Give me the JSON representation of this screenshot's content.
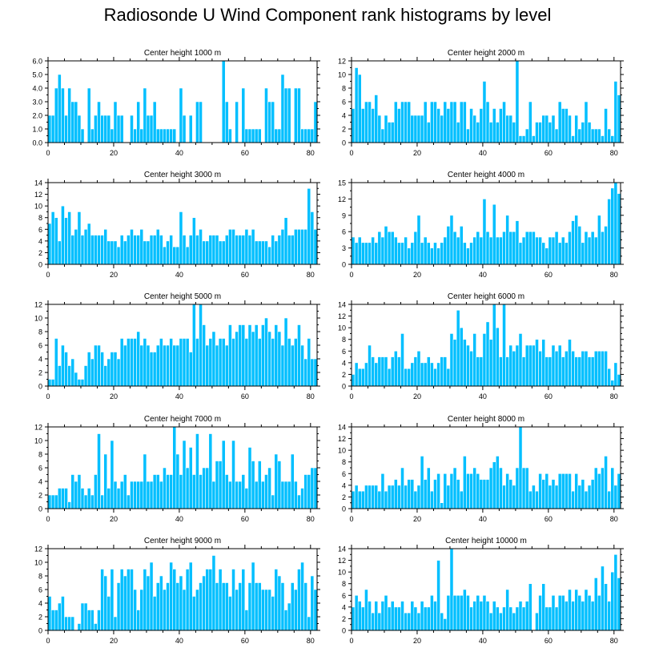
{
  "title": "Radiosonde U Wind Component rank histograms by level",
  "bar_color": "#00bfff",
  "bar_edge_color": "#ffffff",
  "chart_data": [
    {
      "type": "bar",
      "title": "Center height 1000 m",
      "xlim": [
        0,
        82
      ],
      "xticks": [
        0,
        20,
        40,
        60,
        80
      ],
      "ylim": [
        0,
        6
      ],
      "yticks": [
        0,
        1,
        2,
        3,
        4,
        5,
        6
      ],
      "ytick_labels": [
        "0.0",
        "1.0",
        "2.0",
        "3.0",
        "4.0",
        "5.0",
        "6.0"
      ],
      "values": [
        2,
        2,
        4,
        5,
        4,
        2,
        4,
        3,
        3,
        2,
        1,
        0,
        4,
        1,
        2,
        3,
        2,
        2,
        2,
        1,
        3,
        2,
        2,
        0,
        0,
        2,
        1,
        3,
        1,
        4,
        2,
        2,
        3,
        1,
        1,
        1,
        1,
        1,
        1,
        0,
        4,
        2,
        0,
        2,
        0,
        3,
        3,
        0,
        0,
        0,
        0,
        0,
        0,
        6,
        3,
        1,
        0,
        3,
        0,
        4,
        1,
        1,
        1,
        1,
        1,
        0,
        4,
        3,
        3,
        1,
        1,
        5,
        4,
        4,
        0,
        4,
        4,
        1,
        1,
        1,
        1,
        3
      ]
    },
    {
      "type": "bar",
      "title": "Center height 2000 m",
      "xlim": [
        0,
        82
      ],
      "xticks": [
        0,
        20,
        40,
        60,
        80
      ],
      "ylim": [
        0,
        12
      ],
      "yticks": [
        0,
        2,
        4,
        6,
        8,
        10,
        12
      ],
      "ytick_labels": [
        "0",
        "2",
        "4",
        "6",
        "8",
        "10",
        "12"
      ],
      "values": [
        5,
        11,
        10,
        5,
        6,
        6,
        5,
        7,
        4,
        2,
        4,
        3,
        3,
        6,
        5,
        6,
        6,
        6,
        4,
        4,
        4,
        4,
        6,
        3,
        6,
        6,
        5,
        4,
        6,
        5,
        6,
        6,
        3,
        6,
        6,
        2,
        5,
        4,
        3,
        5,
        9,
        6,
        3,
        5,
        3,
        5,
        6,
        4,
        4,
        3,
        12,
        1,
        1,
        2,
        6,
        1,
        3,
        3,
        4,
        4,
        3,
        4,
        2,
        6,
        5,
        5,
        4,
        1,
        4,
        2,
        3,
        6,
        3,
        2,
        2,
        2,
        1,
        5,
        2,
        1,
        9,
        7
      ]
    },
    {
      "type": "bar",
      "title": "Center height 3000 m",
      "xlim": [
        0,
        82
      ],
      "xticks": [
        0,
        20,
        40,
        60,
        80
      ],
      "ylim": [
        0,
        14
      ],
      "yticks": [
        0,
        2,
        4,
        6,
        8,
        10,
        12,
        14
      ],
      "ytick_labels": [
        "0",
        "2",
        "4",
        "6",
        "8",
        "10",
        "12",
        "14"
      ],
      "values": [
        7,
        9,
        8,
        4,
        10,
        8,
        9,
        5,
        6,
        9,
        5,
        6,
        7,
        5,
        5,
        5,
        5,
        6,
        4,
        4,
        4,
        3,
        5,
        4,
        5,
        6,
        5,
        5,
        6,
        4,
        4,
        5,
        5,
        6,
        5,
        3,
        4,
        5,
        3,
        3,
        9,
        5,
        3,
        5,
        8,
        5,
        6,
        4,
        4,
        5,
        5,
        5,
        4,
        4,
        5,
        6,
        6,
        5,
        5,
        5,
        6,
        5,
        6,
        4,
        4,
        4,
        4,
        3,
        5,
        4,
        5,
        6,
        8,
        5,
        5,
        6,
        6,
        6,
        6,
        13,
        9,
        6
      ]
    },
    {
      "type": "bar",
      "title": "Center height 4000 m",
      "xlim": [
        0,
        82
      ],
      "xticks": [
        0,
        20,
        40,
        60,
        80
      ],
      "ylim": [
        0,
        15
      ],
      "yticks": [
        0,
        3,
        6,
        9,
        12,
        15
      ],
      "ytick_labels": [
        "0",
        "3",
        "6",
        "9",
        "12",
        "15"
      ],
      "values": [
        5,
        4,
        5,
        4,
        4,
        4,
        5,
        4,
        6,
        5,
        7,
        6,
        6,
        5,
        4,
        4,
        5,
        3,
        4,
        6,
        9,
        4,
        5,
        4,
        3,
        4,
        3,
        4,
        5,
        7,
        9,
        6,
        5,
        7,
        4,
        3,
        4,
        5,
        6,
        5,
        12,
        6,
        5,
        11,
        5,
        5,
        6,
        9,
        6,
        6,
        8,
        4,
        5,
        6,
        6,
        6,
        5,
        5,
        4,
        3,
        5,
        5,
        6,
        4,
        5,
        4,
        6,
        8,
        9,
        7,
        4,
        6,
        5,
        6,
        5,
        9,
        6,
        7,
        12,
        14,
        15,
        13
      ]
    },
    {
      "type": "bar",
      "title": "Center height 5000 m",
      "xlim": [
        0,
        82
      ],
      "xticks": [
        0,
        20,
        40,
        60,
        80
      ],
      "ylim": [
        0,
        12
      ],
      "yticks": [
        0,
        2,
        4,
        6,
        8,
        10,
        12
      ],
      "ytick_labels": [
        "0",
        "2",
        "4",
        "6",
        "8",
        "10",
        "12"
      ],
      "values": [
        1,
        1,
        7,
        3,
        6,
        5,
        3,
        4,
        2,
        1,
        1,
        3,
        5,
        4,
        6,
        6,
        5,
        3,
        4,
        5,
        5,
        4,
        7,
        6,
        7,
        7,
        7,
        8,
        6,
        7,
        6,
        5,
        5,
        6,
        7,
        6,
        6,
        7,
        6,
        6,
        7,
        7,
        7,
        5,
        12,
        7,
        12,
        9,
        6,
        7,
        8,
        6,
        7,
        7,
        6,
        9,
        7,
        8,
        9,
        9,
        7,
        9,
        8,
        9,
        7,
        9,
        10,
        8,
        7,
        9,
        8,
        6,
        10,
        7,
        6,
        7,
        9,
        6,
        4,
        7,
        4,
        4
      ]
    },
    {
      "type": "bar",
      "title": "Center height 6000 m",
      "xlim": [
        0,
        82
      ],
      "xticks": [
        0,
        20,
        40,
        60,
        80
      ],
      "ylim": [
        0,
        14
      ],
      "yticks": [
        0,
        2,
        4,
        6,
        8,
        10,
        12,
        14
      ],
      "ytick_labels": [
        "0",
        "2",
        "4",
        "6",
        "8",
        "10",
        "12",
        "14"
      ],
      "values": [
        2,
        4,
        3,
        3,
        4,
        7,
        5,
        4,
        5,
        5,
        5,
        3,
        5,
        6,
        5,
        9,
        3,
        3,
        4,
        5,
        6,
        4,
        4,
        5,
        4,
        3,
        4,
        5,
        5,
        3,
        9,
        8,
        13,
        10,
        8,
        7,
        6,
        9,
        5,
        5,
        9,
        11,
        8,
        14,
        10,
        5,
        14,
        5,
        7,
        6,
        7,
        9,
        5,
        7,
        7,
        7,
        8,
        6,
        8,
        5,
        5,
        7,
        6,
        7,
        5,
        6,
        8,
        6,
        5,
        5,
        6,
        6,
        5,
        5,
        6,
        6,
        6,
        6,
        3,
        1,
        4,
        2
      ]
    },
    {
      "type": "bar",
      "title": "Center height 7000 m",
      "xlim": [
        0,
        82
      ],
      "xticks": [
        0,
        20,
        40,
        60,
        80
      ],
      "ylim": [
        0,
        12
      ],
      "yticks": [
        0,
        2,
        4,
        6,
        8,
        10,
        12
      ],
      "ytick_labels": [
        "0",
        "2",
        "4",
        "6",
        "8",
        "10",
        "12"
      ],
      "values": [
        2,
        2,
        2,
        3,
        3,
        3,
        1,
        5,
        4,
        5,
        3,
        2,
        3,
        2,
        5,
        11,
        2,
        8,
        3,
        10,
        4,
        3,
        4,
        5,
        2,
        4,
        4,
        4,
        4,
        8,
        4,
        4,
        5,
        5,
        4,
        6,
        5,
        5,
        12,
        8,
        5,
        10,
        6,
        9,
        5,
        11,
        5,
        6,
        6,
        11,
        4,
        7,
        7,
        10,
        5,
        4,
        10,
        4,
        4,
        5,
        3,
        9,
        7,
        4,
        7,
        4,
        5,
        6,
        2,
        8,
        7,
        4,
        4,
        4,
        8,
        4,
        2,
        3,
        5,
        5,
        6,
        6
      ]
    },
    {
      "type": "bar",
      "title": "Center height 8000 m",
      "xlim": [
        0,
        82
      ],
      "xticks": [
        0,
        20,
        40,
        60,
        80
      ],
      "ylim": [
        0,
        14
      ],
      "yticks": [
        0,
        2,
        4,
        6,
        8,
        10,
        12,
        14
      ],
      "ytick_labels": [
        "0",
        "2",
        "4",
        "6",
        "8",
        "10",
        "12",
        "14"
      ],
      "values": [
        3,
        4,
        3,
        3,
        4,
        4,
        4,
        4,
        3,
        6,
        3,
        4,
        4,
        5,
        4,
        7,
        4,
        5,
        5,
        3,
        4,
        9,
        5,
        7,
        3,
        5,
        6,
        1,
        6,
        4,
        6,
        7,
        5,
        3,
        9,
        6,
        6,
        7,
        6,
        5,
        5,
        5,
        7,
        8,
        9,
        7,
        4,
        6,
        5,
        4,
        7,
        14,
        7,
        7,
        3,
        4,
        3,
        6,
        5,
        6,
        4,
        5,
        4,
        6,
        6,
        6,
        6,
        3,
        6,
        4,
        5,
        3,
        4,
        5,
        7,
        6,
        7,
        9,
        3,
        7,
        4,
        6
      ]
    },
    {
      "type": "bar",
      "title": "Center height 9000 m",
      "xlim": [
        0,
        82
      ],
      "xticks": [
        0,
        20,
        40,
        60,
        80
      ],
      "ylim": [
        0,
        12
      ],
      "yticks": [
        0,
        2,
        4,
        6,
        8,
        10,
        12
      ],
      "ytick_labels": [
        "0",
        "2",
        "4",
        "6",
        "8",
        "10",
        "12"
      ],
      "values": [
        5,
        3,
        3,
        4,
        5,
        2,
        2,
        2,
        0,
        1,
        4,
        4,
        3,
        3,
        1,
        3,
        9,
        8,
        5,
        9,
        2,
        7,
        9,
        8,
        9,
        9,
        6,
        3,
        6,
        9,
        8,
        10,
        5,
        7,
        8,
        6,
        7,
        10,
        9,
        7,
        8,
        6,
        9,
        10,
        5,
        6,
        7,
        8,
        9,
        9,
        11,
        7,
        9,
        7,
        7,
        5,
        9,
        6,
        7,
        9,
        3,
        7,
        10,
        7,
        7,
        6,
        6,
        6,
        5,
        9,
        8,
        7,
        3,
        4,
        7,
        6,
        9,
        10,
        7,
        2,
        8,
        6
      ]
    },
    {
      "type": "bar",
      "title": "Center height 10000 m",
      "xlim": [
        0,
        82
      ],
      "xticks": [
        0,
        20,
        40,
        60,
        80
      ],
      "ylim": [
        0,
        14
      ],
      "yticks": [
        0,
        2,
        4,
        6,
        8,
        10,
        12,
        14
      ],
      "ytick_labels": [
        "0",
        "2",
        "4",
        "6",
        "8",
        "10",
        "12",
        "14"
      ],
      "values": [
        4,
        6,
        5,
        4,
        7,
        5,
        3,
        5,
        3,
        5,
        6,
        4,
        5,
        4,
        4,
        5,
        3,
        3,
        5,
        4,
        3,
        5,
        4,
        4,
        6,
        5,
        12,
        3,
        2,
        6,
        14,
        6,
        6,
        6,
        7,
        6,
        4,
        5,
        6,
        5,
        6,
        5,
        3,
        5,
        4,
        3,
        4,
        7,
        4,
        3,
        4,
        5,
        4,
        5,
        8,
        0,
        3,
        6,
        8,
        4,
        4,
        6,
        4,
        6,
        6,
        5,
        7,
        5,
        7,
        6,
        5,
        7,
        6,
        5,
        9,
        6,
        11,
        8,
        5,
        10,
        13,
        9
      ]
    }
  ]
}
